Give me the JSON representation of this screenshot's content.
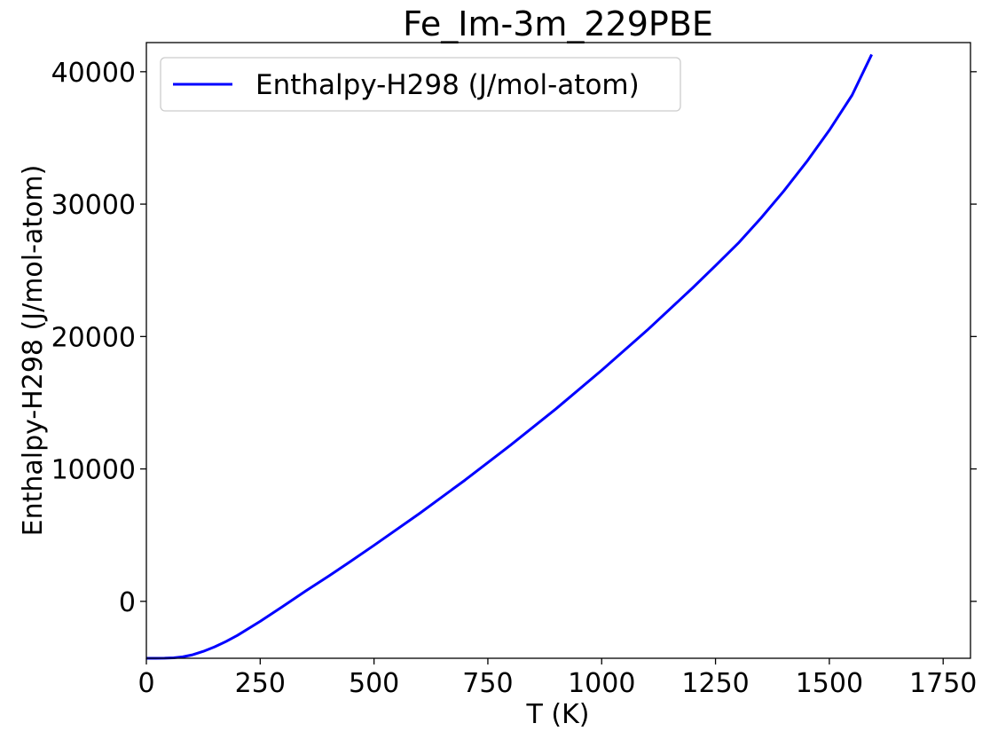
{
  "chart_data": {
    "type": "line",
    "title": "Fe_Im-3m_229PBE",
    "xlabel": "T (K)",
    "ylabel": "Enthalpy-H298 (J/mol-atom)",
    "xlim": [
      0,
      1810
    ],
    "ylim": [
      -4300,
      42200
    ],
    "xticks": [
      0,
      250,
      500,
      750,
      1000,
      1250,
      1500,
      1750
    ],
    "yticks": [
      0,
      10000,
      20000,
      30000,
      40000
    ],
    "grid": false,
    "legend_position": "top-left",
    "series": [
      {
        "name": "Enthalpy-H298 (J/mol-atom)",
        "color": "#0000ff",
        "x": [
          0,
          20,
          40,
          60,
          80,
          100,
          125,
          150,
          175,
          200,
          250,
          298,
          350,
          400,
          450,
          500,
          600,
          700,
          800,
          900,
          1000,
          1100,
          1200,
          1250,
          1300,
          1350,
          1400,
          1450,
          1500,
          1550,
          1593
        ],
        "y": [
          -4300,
          -4300,
          -4295,
          -4270,
          -4190,
          -4050,
          -3780,
          -3440,
          -3030,
          -2570,
          -1510,
          -420,
          780,
          1900,
          3050,
          4230,
          6640,
          9160,
          11800,
          14550,
          17450,
          20480,
          23680,
          25350,
          27050,
          28950,
          30990,
          33190,
          35580,
          38230,
          41300
        ]
      }
    ]
  }
}
